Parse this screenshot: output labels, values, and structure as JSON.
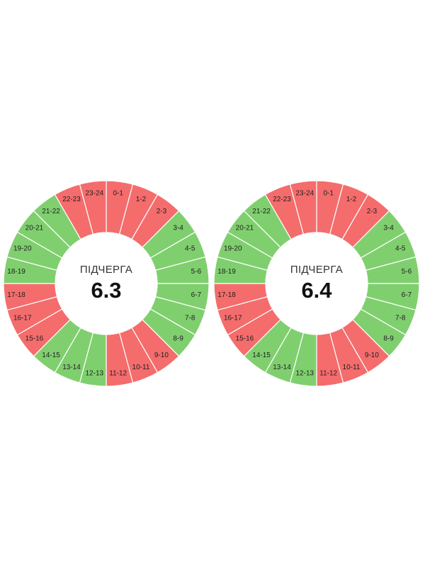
{
  "colors": {
    "on": "#80cf6f",
    "off": "#f46c6c",
    "divider": "#ffffff",
    "background": "#ffffff"
  },
  "chart_data": [
    {
      "type": "pie",
      "caption": "ПІДЧЕРГА",
      "group": "6.3",
      "segments": [
        {
          "label": "0-1",
          "status": "off"
        },
        {
          "label": "1-2",
          "status": "off"
        },
        {
          "label": "2-3",
          "status": "off"
        },
        {
          "label": "3-4",
          "status": "on"
        },
        {
          "label": "4-5",
          "status": "on"
        },
        {
          "label": "5-6",
          "status": "on"
        },
        {
          "label": "6-7",
          "status": "on"
        },
        {
          "label": "7-8",
          "status": "on"
        },
        {
          "label": "8-9",
          "status": "on"
        },
        {
          "label": "9-10",
          "status": "off"
        },
        {
          "label": "10-11",
          "status": "off"
        },
        {
          "label": "11-12",
          "status": "off"
        },
        {
          "label": "12-13",
          "status": "on"
        },
        {
          "label": "13-14",
          "status": "on"
        },
        {
          "label": "14-15",
          "status": "on"
        },
        {
          "label": "15-16",
          "status": "off"
        },
        {
          "label": "16-17",
          "status": "off"
        },
        {
          "label": "17-18",
          "status": "off"
        },
        {
          "label": "18-19",
          "status": "on"
        },
        {
          "label": "19-20",
          "status": "on"
        },
        {
          "label": "20-21",
          "status": "on"
        },
        {
          "label": "21-22",
          "status": "on"
        },
        {
          "label": "22-23",
          "status": "off"
        },
        {
          "label": "23-24",
          "status": "off"
        }
      ]
    },
    {
      "type": "pie",
      "caption": "ПІДЧЕРГА",
      "group": "6.4",
      "segments": [
        {
          "label": "0-1",
          "status": "off"
        },
        {
          "label": "1-2",
          "status": "off"
        },
        {
          "label": "2-3",
          "status": "off"
        },
        {
          "label": "3-4",
          "status": "on"
        },
        {
          "label": "4-5",
          "status": "on"
        },
        {
          "label": "5-6",
          "status": "on"
        },
        {
          "label": "6-7",
          "status": "on"
        },
        {
          "label": "7-8",
          "status": "on"
        },
        {
          "label": "8-9",
          "status": "on"
        },
        {
          "label": "9-10",
          "status": "off"
        },
        {
          "label": "10-11",
          "status": "off"
        },
        {
          "label": "11-12",
          "status": "off"
        },
        {
          "label": "12-13",
          "status": "on"
        },
        {
          "label": "13-14",
          "status": "on"
        },
        {
          "label": "14-15",
          "status": "on"
        },
        {
          "label": "15-16",
          "status": "off"
        },
        {
          "label": "16-17",
          "status": "off"
        },
        {
          "label": "17-18",
          "status": "off"
        },
        {
          "label": "18-19",
          "status": "on"
        },
        {
          "label": "19-20",
          "status": "on"
        },
        {
          "label": "20-21",
          "status": "on"
        },
        {
          "label": "21-22",
          "status": "on"
        },
        {
          "label": "22-23",
          "status": "off"
        },
        {
          "label": "23-24",
          "status": "off"
        }
      ]
    }
  ]
}
